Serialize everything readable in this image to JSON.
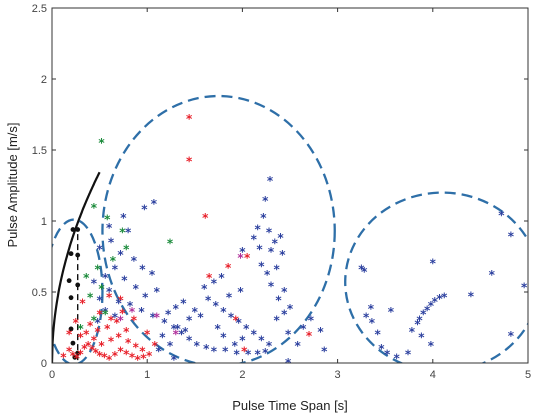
{
  "chart_data": {
    "type": "scatter",
    "title": "",
    "xlabel": "Pulse Time Span [s]",
    "ylabel": "Pulse Amplitude [m/s]",
    "xlim": [
      0,
      5
    ],
    "ylim": [
      0,
      2.5
    ],
    "x_ticks": [
      0,
      1,
      2,
      3,
      4,
      5
    ],
    "y_ticks": [
      0,
      0.5,
      1,
      1.5,
      2,
      2.5
    ],
    "x_tick_labels": [
      "0",
      "1",
      "2",
      "3",
      "4",
      "5"
    ],
    "y_tick_labels": [
      "0",
      "0.5",
      "1",
      "1.5",
      "2",
      "2.5"
    ],
    "grid": false,
    "legend": "none",
    "colors": {
      "black": "#111111",
      "red": "#e8202a",
      "blue": "#2b3f9e",
      "green": "#1a8a3a",
      "magenta": "#b0309a",
      "ellipse": "#2e6fa8"
    },
    "curve": {
      "color": "black",
      "a": 1.9,
      "x_start": 0.0,
      "x_end": 0.5
    },
    "dashed_segment": {
      "x": 0.27,
      "y_from": 0.02,
      "y_to": 0.94
    },
    "ellipses": [
      {
        "cx": 0.23,
        "cy": 0.5,
        "rx": 0.3,
        "ry": 0.51
      },
      {
        "cx": 1.75,
        "cy": 0.93,
        "rx": 1.22,
        "ry": 0.95
      },
      {
        "cx": 4.1,
        "cy": 0.57,
        "rx": 1.02,
        "ry": 0.63
      }
    ],
    "series": [
      {
        "marker": "dot",
        "color": "black",
        "points": [
          [
            0.22,
            0.94
          ],
          [
            0.27,
            0.94
          ],
          [
            0.2,
            0.77
          ],
          [
            0.27,
            0.76
          ],
          [
            0.18,
            0.58
          ],
          [
            0.27,
            0.55
          ],
          [
            0.2,
            0.46
          ],
          [
            0.2,
            0.24
          ],
          [
            0.22,
            0.14
          ],
          [
            0.27,
            0.07
          ],
          [
            0.24,
            0.04
          ]
        ]
      },
      {
        "marker": "star",
        "color": "red",
        "points": [
          [
            1.44,
            1.72
          ],
          [
            1.44,
            1.42
          ],
          [
            1.61,
            1.02
          ],
          [
            1.85,
            0.67
          ],
          [
            1.65,
            0.6
          ],
          [
            2.05,
            0.74
          ],
          [
            0.12,
            0.04
          ],
          [
            0.18,
            0.08
          ],
          [
            0.22,
            0.05
          ],
          [
            0.26,
            0.03
          ],
          [
            0.3,
            0.06
          ],
          [
            0.34,
            0.1
          ],
          [
            0.38,
            0.12
          ],
          [
            0.42,
            0.09
          ],
          [
            0.46,
            0.07
          ],
          [
            0.5,
            0.05
          ],
          [
            0.55,
            0.04
          ],
          [
            0.6,
            0.02
          ],
          [
            0.66,
            0.05
          ],
          [
            0.72,
            0.08
          ],
          [
            0.78,
            0.06
          ],
          [
            0.84,
            0.04
          ],
          [
            0.9,
            0.02
          ],
          [
            0.96,
            0.03
          ],
          [
            1.02,
            0.05
          ],
          [
            0.3,
            0.18
          ],
          [
            0.36,
            0.2
          ],
          [
            0.44,
            0.16
          ],
          [
            0.52,
            0.12
          ],
          [
            0.62,
            0.15
          ],
          [
            0.7,
            0.18
          ],
          [
            0.8,
            0.14
          ],
          [
            0.88,
            0.11
          ],
          [
            0.95,
            0.08
          ],
          [
            0.4,
            0.26
          ],
          [
            0.48,
            0.22
          ],
          [
            0.58,
            0.24
          ],
          [
            0.68,
            0.28
          ],
          [
            0.78,
            0.22
          ],
          [
            0.5,
            0.34
          ],
          [
            0.62,
            0.3
          ],
          [
            0.74,
            0.35
          ],
          [
            0.86,
            0.3
          ],
          [
            0.72,
            0.44
          ],
          [
            0.6,
            0.46
          ],
          [
            0.32,
            0.42
          ],
          [
            1.0,
            0.2
          ],
          [
            1.08,
            0.12
          ],
          [
            0.18,
            0.2
          ],
          [
            0.25,
            0.28
          ],
          [
            1.93,
            0.3
          ],
          [
            2.7,
            0.19
          ],
          [
            2.02,
            0.08
          ]
        ]
      },
      {
        "marker": "star",
        "color": "blue",
        "points": [
          [
            1.07,
            1.12
          ],
          [
            0.97,
            1.08
          ],
          [
            0.75,
            1.02
          ],
          [
            0.6,
            0.95
          ],
          [
            0.8,
            0.92
          ],
          [
            0.62,
            0.85
          ],
          [
            0.5,
            0.8
          ],
          [
            0.72,
            0.76
          ],
          [
            0.86,
            0.72
          ],
          [
            0.95,
            0.66
          ],
          [
            1.05,
            0.62
          ],
          [
            0.66,
            0.66
          ],
          [
            0.56,
            0.6
          ],
          [
            0.44,
            0.56
          ],
          [
            0.76,
            0.58
          ],
          [
            0.88,
            0.52
          ],
          [
            0.98,
            0.46
          ],
          [
            1.1,
            0.5
          ],
          [
            0.6,
            0.5
          ],
          [
            0.5,
            0.44
          ],
          [
            0.7,
            0.42
          ],
          [
            0.82,
            0.4
          ],
          [
            0.94,
            0.36
          ],
          [
            1.06,
            0.32
          ],
          [
            0.56,
            0.36
          ],
          [
            0.66,
            0.32
          ],
          [
            0.48,
            0.28
          ],
          [
            1.18,
            0.28
          ],
          [
            1.28,
            0.24
          ],
          [
            1.36,
            0.2
          ],
          [
            1.44,
            0.16
          ],
          [
            1.52,
            0.12
          ],
          [
            1.62,
            0.1
          ],
          [
            1.7,
            0.08
          ],
          [
            1.82,
            0.08
          ],
          [
            1.94,
            0.06
          ],
          [
            2.06,
            0.06
          ],
          [
            2.16,
            0.06
          ],
          [
            2.24,
            0.07
          ],
          [
            1.38,
            0.42
          ],
          [
            1.5,
            0.36
          ],
          [
            1.44,
            0.3
          ],
          [
            1.56,
            0.32
          ],
          [
            1.3,
            0.38
          ],
          [
            1.22,
            0.34
          ],
          [
            1.32,
            0.24
          ],
          [
            1.4,
            0.22
          ],
          [
            1.6,
            0.52
          ],
          [
            1.7,
            0.56
          ],
          [
            1.78,
            0.6
          ],
          [
            1.64,
            0.44
          ],
          [
            1.72,
            0.4
          ],
          [
            1.8,
            0.36
          ],
          [
            1.88,
            0.32
          ],
          [
            1.96,
            0.28
          ],
          [
            2.04,
            0.24
          ],
          [
            2.12,
            0.2
          ],
          [
            2.2,
            0.16
          ],
          [
            2.28,
            0.12
          ],
          [
            2.36,
            0.3
          ],
          [
            2.44,
            0.34
          ],
          [
            2.22,
            1.02
          ],
          [
            2.24,
            1.14
          ],
          [
            2.29,
            1.28
          ],
          [
            2.16,
            0.94
          ],
          [
            2.12,
            0.87
          ],
          [
            2.18,
            0.8
          ],
          [
            2.3,
            0.78
          ],
          [
            2.2,
            0.68
          ],
          [
            2.26,
            0.62
          ],
          [
            2.36,
            0.66
          ],
          [
            2.42,
            0.76
          ],
          [
            2.34,
            0.84
          ],
          [
            2.28,
            0.92
          ],
          [
            2.4,
            0.88
          ],
          [
            2.3,
            0.54
          ],
          [
            2.44,
            0.5
          ],
          [
            2.5,
            0.38
          ],
          [
            2.38,
            0.44
          ],
          [
            2.48,
            0.2
          ],
          [
            2.58,
            0.12
          ],
          [
            2.64,
            0.24
          ],
          [
            2.72,
            0.3
          ],
          [
            2.82,
            0.22
          ],
          [
            2.86,
            0.08
          ],
          [
            2.0,
            0.16
          ],
          [
            1.92,
            0.12
          ],
          [
            1.98,
            0.5
          ],
          [
            1.8,
            0.18
          ],
          [
            1.86,
            0.46
          ],
          [
            1.74,
            0.24
          ],
          [
            1.16,
            0.18
          ],
          [
            1.24,
            0.12
          ],
          [
            1.12,
            0.08
          ],
          [
            1.28,
            0.02
          ],
          [
            2.48,
            0.0
          ],
          [
            3.25,
            0.66
          ],
          [
            3.28,
            0.64
          ],
          [
            3.35,
            0.38
          ],
          [
            3.3,
            0.32
          ],
          [
            3.36,
            0.28
          ],
          [
            3.42,
            0.2
          ],
          [
            3.46,
            0.1
          ],
          [
            3.52,
            0.06
          ],
          [
            3.56,
            0.36
          ],
          [
            3.74,
            0.06
          ],
          [
            3.62,
            0.03
          ],
          [
            3.78,
            0.22
          ],
          [
            3.84,
            0.27
          ],
          [
            3.86,
            0.3
          ],
          [
            3.9,
            0.34
          ],
          [
            3.94,
            0.37
          ],
          [
            3.98,
            0.4
          ],
          [
            4.02,
            0.43
          ],
          [
            4.07,
            0.45
          ],
          [
            4.12,
            0.46
          ],
          [
            4.4,
            0.47
          ],
          [
            3.88,
            0.18
          ],
          [
            4.0,
            0.7
          ],
          [
            4.62,
            0.62
          ],
          [
            4.72,
            1.04
          ],
          [
            4.82,
            0.89
          ],
          [
            4.96,
            0.53
          ],
          [
            4.82,
            0.19
          ],
          [
            3.98,
            0.12
          ],
          [
            2.0,
            0.78
          ]
        ]
      },
      {
        "marker": "star",
        "color": "green",
        "points": [
          [
            0.52,
            1.55
          ],
          [
            0.44,
            1.09
          ],
          [
            0.58,
            1.01
          ],
          [
            0.74,
            0.92
          ],
          [
            0.78,
            0.8
          ],
          [
            0.64,
            0.72
          ],
          [
            0.48,
            0.66
          ],
          [
            0.36,
            0.6
          ],
          [
            0.52,
            0.52
          ],
          [
            0.4,
            0.46
          ],
          [
            0.56,
            0.34
          ],
          [
            0.44,
            0.3
          ],
          [
            0.3,
            0.24
          ],
          [
            1.24,
            0.84
          ]
        ]
      },
      {
        "marker": "star",
        "color": "magenta",
        "points": [
          [
            1.1,
            0.32
          ],
          [
            0.84,
            0.36
          ],
          [
            1.3,
            0.2
          ],
          [
            0.72,
            0.3
          ],
          [
            1.98,
            0.74
          ]
        ]
      }
    ]
  }
}
